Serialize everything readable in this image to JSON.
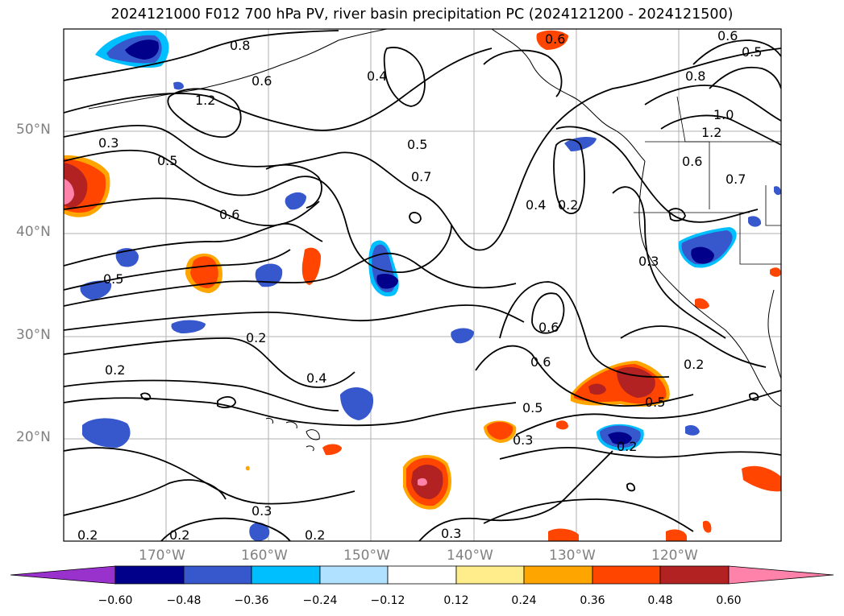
{
  "title": "2024121000 F012 700 hPa PV, river basin precipitation PC (2024121200 - 2024121500)",
  "map": {
    "extent": {
      "lon": [
        -180,
        -110
      ],
      "lat": [
        10,
        60
      ]
    },
    "lat_ticks": [
      "50°N",
      "40°N",
      "30°N",
      "20°N"
    ],
    "lon_ticks": [
      "170°W",
      "160°W",
      "150°W",
      "140°W",
      "130°W",
      "120°W"
    ],
    "gridlines": true
  },
  "contours": {
    "field": "700 hPa PV",
    "labels": [
      "0.8",
      "0.6",
      "1.2",
      "0.4",
      "0.5",
      "0.7",
      "0.3",
      "0.5",
      "0.6",
      "0.5",
      "0.2",
      "0.4",
      "0.2",
      "0.6",
      "0.6",
      "0.5",
      "0.3",
      "0.2",
      "0.3",
      "0.2",
      "0.2",
      "0.3",
      "0.4",
      "0.2",
      "0.3",
      "0.2",
      "0.8",
      "1.0",
      "1.2",
      "0.6",
      "0.7",
      "0.5",
      "0.6",
      "0.5",
      "0.2",
      "0.6"
    ]
  },
  "colorbar": {
    "ticks": [
      "−0.60",
      "−0.48",
      "−0.36",
      "−0.24",
      "−0.12",
      "0.12",
      "0.24",
      "0.36",
      "0.48",
      "0.60"
    ],
    "colors": [
      "#9932cc",
      "#00008b",
      "#3658cc",
      "#00bfff",
      "#b0e2ff",
      "#ffffff",
      "#ffec8b",
      "#ffa500",
      "#ff4500",
      "#b22222",
      "#ff82ab"
    ],
    "extend": "both"
  },
  "colors": {
    "neg_light": "#b0e2ff",
    "neg_mid": "#00bfff",
    "neg_strong": "#3658cc",
    "neg_max": "#00008b",
    "pos_light": "#ffec8b",
    "pos_mid": "#ffa500",
    "pos_strong": "#ff4500",
    "pos_max": "#b22222",
    "pos_top": "#ff82ab"
  }
}
